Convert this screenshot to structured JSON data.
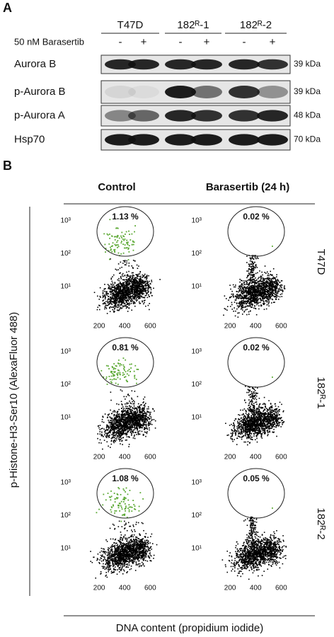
{
  "panel_a": {
    "label": "A",
    "treatment": "50 nM Barasertib",
    "cell_lines": [
      "T47D",
      "182ᴿ-1",
      "182ᴿ-2"
    ],
    "conditions": [
      "-",
      "+",
      "-",
      "+",
      "-",
      "+"
    ],
    "blots": [
      {
        "name": "Aurora B",
        "size": "39 kDa"
      },
      {
        "name": "p-Aurora B",
        "size": "39 kDa"
      },
      {
        "name": "p-Aurora A",
        "size": "48 kDa"
      },
      {
        "name": "Hsp70",
        "size": "70 kDa"
      }
    ]
  },
  "panel_b": {
    "label": "B",
    "columns": [
      "Control",
      "Barasertib (24 h)"
    ],
    "rows": [
      "T47D",
      "182ᴿ-1",
      "182ᴿ-2"
    ],
    "y_label": "p-Histone-H3-Ser10 (AlexaFluor 488)",
    "x_label": "DNA content (propidium iodide)",
    "xlim": [
      0,
      720
    ],
    "xticks": [
      200,
      400,
      600
    ],
    "ylim": [
      1,
      3000
    ],
    "log_y": true,
    "yticks": [
      {
        "value": 10,
        "label": "10¹"
      },
      {
        "value": 100,
        "label": "10²"
      },
      {
        "value": 1000,
        "label": "10³"
      }
    ],
    "gates": [
      [
        "1.13 %",
        "0.02 %"
      ],
      [
        "0.81 %",
        "0.02 %"
      ],
      [
        "1.08 %",
        "0.05 %"
      ]
    ]
  }
}
